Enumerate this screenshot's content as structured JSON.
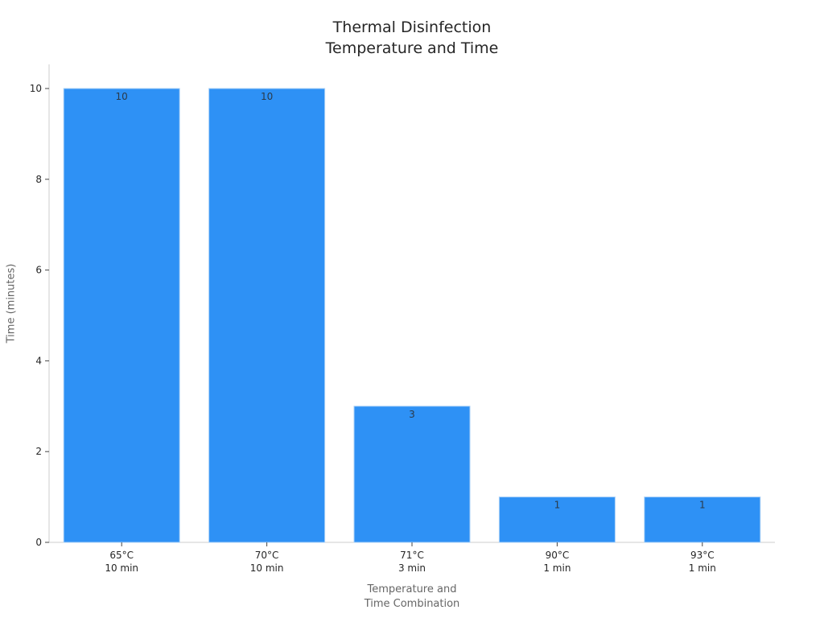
{
  "chart_data": {
    "type": "bar",
    "title": "Thermal Disinfection\nTemperature and Time",
    "title_lines": [
      "Thermal Disinfection",
      "Temperature and Time"
    ],
    "xlabel": "Temperature and\nTime Combination",
    "xlabel_lines": [
      "Temperature and",
      "Time Combination"
    ],
    "ylabel": "Time (minutes)",
    "categories": [
      "65°C\n10 min",
      "70°C\n10 min",
      "71°C\n3 min",
      "90°C\n1 min",
      "93°C\n1 min"
    ],
    "category_lines": [
      [
        "65°C",
        "10 min"
      ],
      [
        "70°C",
        "10 min"
      ],
      [
        "71°C",
        "3 min"
      ],
      [
        "90°C",
        "1 min"
      ],
      [
        "93°C",
        "1 min"
      ]
    ],
    "values": [
      10,
      10,
      3,
      1,
      1
    ],
    "data_labels": [
      "10",
      "10",
      "3",
      "1",
      "1"
    ],
    "ylim": [
      0,
      10.5
    ],
    "yticks": [
      0,
      2,
      4,
      6,
      8,
      10
    ],
    "grid": false,
    "legend": null,
    "bar_color": "#2E91F5"
  }
}
